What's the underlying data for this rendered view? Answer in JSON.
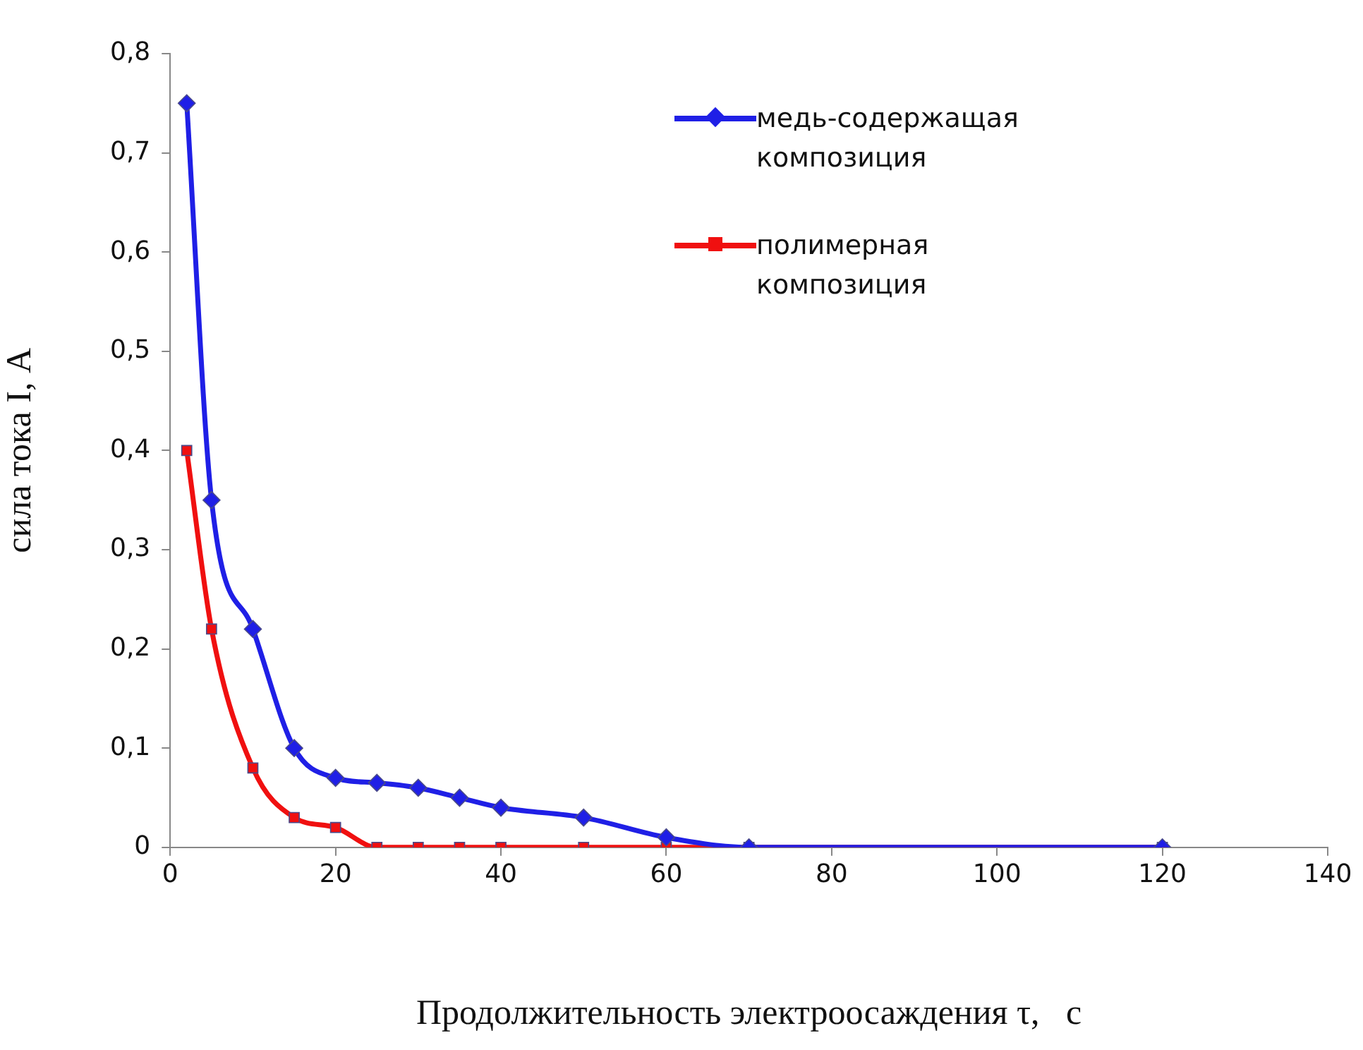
{
  "chart_data": {
    "type": "line",
    "xlabel": "Продолжительность электроосаждения τ,   с",
    "ylabel": "сила тока I, А",
    "xlim": [
      0,
      140
    ],
    "xticks": [
      0,
      20,
      40,
      60,
      80,
      100,
      120,
      140
    ],
    "ylim": [
      0,
      0.8
    ],
    "yticks": [
      0,
      {
        "value": 0.1,
        "label": "0,1"
      },
      {
        "value": 0.2,
        "label": "0,2"
      },
      {
        "value": 0.3,
        "label": "0,3"
      },
      {
        "value": 0.4,
        "label": "0,4"
      },
      {
        "value": 0.5,
        "label": "0,5"
      },
      {
        "value": 0.6,
        "label": "0,6"
      },
      {
        "value": 0.7,
        "label": "0,7"
      },
      {
        "value": 0.8,
        "label": "0,8"
      }
    ],
    "x": [
      2,
      5,
      10,
      15,
      20,
      25,
      30,
      35,
      40,
      50,
      60,
      70,
      120
    ],
    "grid": false,
    "legend": "top right",
    "line_style": "solid",
    "series": [
      {
        "name": "медь-содержащая композиция",
        "color": "#1f1fe6",
        "marker": "diamond",
        "values": [
          0.75,
          0.35,
          0.22,
          0.1,
          0.07,
          0.065,
          0.06,
          0.05,
          0.04,
          0.03,
          0.01,
          0,
          0
        ]
      },
      {
        "name": "полимерная композиция",
        "color": "#f01010",
        "marker": "square",
        "values": [
          0.4,
          0.22,
          0.08,
          0.03,
          0.02,
          0,
          0,
          0,
          0,
          0,
          0,
          0,
          0
        ]
      }
    ]
  }
}
